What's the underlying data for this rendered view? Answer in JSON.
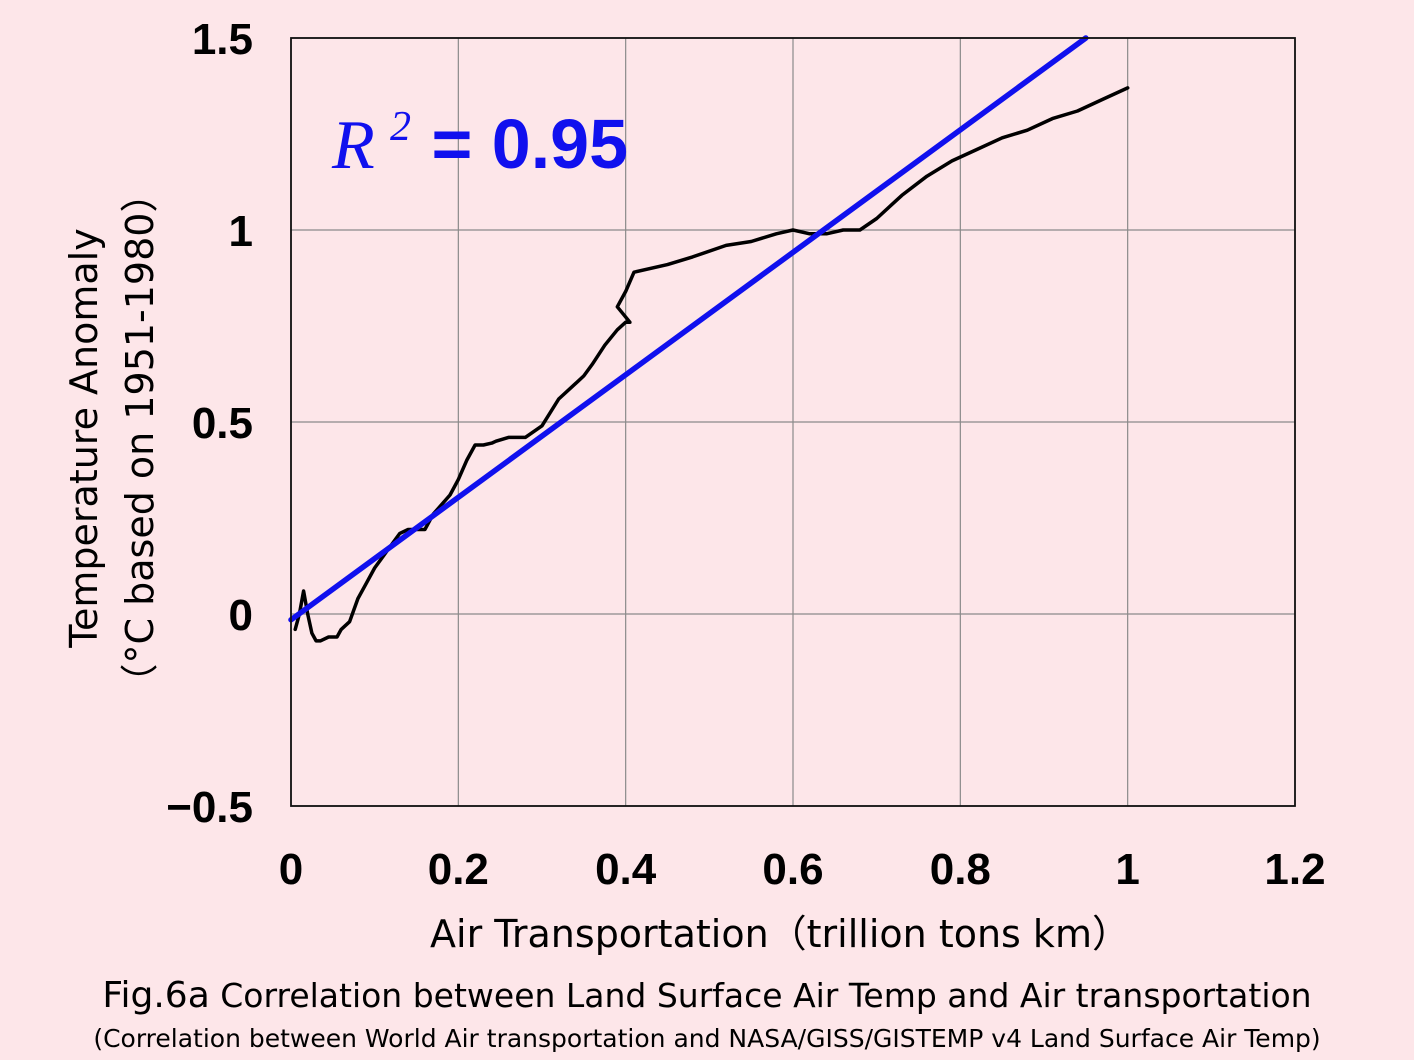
{
  "chart_data": {
    "type": "line",
    "xlabel": "Air Transportation（trillion tons km）",
    "ylabel_line1": "Temperature Anomaly",
    "ylabel_line2": "（°C  based on 1951-1980）",
    "xlim": [
      0,
      1.2
    ],
    "ylim": [
      -0.5,
      1.5
    ],
    "x_ticks": [
      "0",
      "0.2",
      "0.4",
      "0.6",
      "0.8",
      "1",
      "1.2"
    ],
    "y_ticks": [
      "−0.5",
      "0",
      "0.5",
      "1",
      "1.5"
    ],
    "x_tick_values": [
      0,
      0.2,
      0.4,
      0.6,
      0.8,
      1.0,
      1.2
    ],
    "y_tick_values": [
      -0.5,
      0,
      0.5,
      1.0,
      1.5
    ],
    "grid": true,
    "annotation": {
      "r_label": "R",
      "r_sup": "2",
      "value_text": " = 0.95",
      "color": "#1010ee"
    },
    "series": [
      {
        "color": "#000000",
        "x": [
          0.005,
          0.01,
          0.015,
          0.02,
          0.025,
          0.03,
          0.035,
          0.045,
          0.055,
          0.06,
          0.07,
          0.08,
          0.09,
          0.1,
          0.12,
          0.13,
          0.14,
          0.16,
          0.17,
          0.19,
          0.2,
          0.21,
          0.22,
          0.23,
          0.24,
          0.245,
          0.26,
          0.28,
          0.3,
          0.32,
          0.34,
          0.35,
          0.36,
          0.375,
          0.39,
          0.4,
          0.405,
          0.39,
          0.4,
          0.41,
          0.45,
          0.48,
          0.52,
          0.55,
          0.58,
          0.6,
          0.62,
          0.64,
          0.66,
          0.68,
          0.7,
          0.73,
          0.76,
          0.79,
          0.82,
          0.85,
          0.88,
          0.91,
          0.94,
          0.97,
          1.0
        ],
        "y": [
          -0.04,
          0.0,
          0.06,
          0.0,
          -0.05,
          -0.07,
          -0.07,
          -0.06,
          -0.06,
          -0.04,
          -0.02,
          0.04,
          0.08,
          0.12,
          0.18,
          0.21,
          0.22,
          0.22,
          0.26,
          0.31,
          0.35,
          0.4,
          0.44,
          0.44,
          0.445,
          0.45,
          0.46,
          0.46,
          0.49,
          0.56,
          0.6,
          0.62,
          0.65,
          0.7,
          0.74,
          0.76,
          0.76,
          0.8,
          0.84,
          0.89,
          0.91,
          0.93,
          0.96,
          0.97,
          0.99,
          1.0,
          0.99,
          0.99,
          1.0,
          1.0,
          1.03,
          1.09,
          1.14,
          1.18,
          1.21,
          1.24,
          1.26,
          1.29,
          1.31,
          1.34,
          1.37
        ]
      },
      {
        "color": "#1010ee",
        "x": [
          0.0,
          0.95
        ],
        "y": [
          -0.015,
          1.5
        ]
      }
    ]
  },
  "caption": {
    "fig_num": "Fig.6a",
    "title": " Correlation between Land Surface Air Temp and Air transportation",
    "subtitle": "(Correlation between World Air transportation and NASA/GISS/GISTEMP v4 Land Surface Air Temp)"
  }
}
